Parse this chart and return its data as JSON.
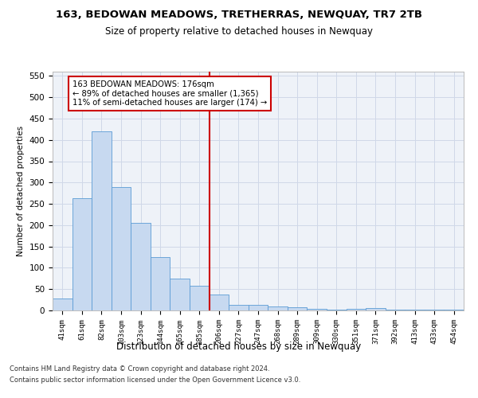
{
  "title": "163, BEDOWAN MEADOWS, TRETHERRAS, NEWQUAY, TR7 2TB",
  "subtitle": "Size of property relative to detached houses in Newquay",
  "xlabel": "Distribution of detached houses by size in Newquay",
  "ylabel": "Number of detached properties",
  "bar_labels": [
    "41sqm",
    "61sqm",
    "82sqm",
    "103sqm",
    "123sqm",
    "144sqm",
    "165sqm",
    "185sqm",
    "206sqm",
    "227sqm",
    "247sqm",
    "268sqm",
    "289sqm",
    "309sqm",
    "330sqm",
    "351sqm",
    "371sqm",
    "392sqm",
    "413sqm",
    "433sqm",
    "454sqm"
  ],
  "bar_values": [
    28,
    263,
    420,
    290,
    205,
    125,
    75,
    57,
    37,
    13,
    13,
    9,
    7,
    4,
    1,
    4,
    5,
    2,
    1,
    1,
    1
  ],
  "bar_color": "#c7d9f0",
  "bar_edge_color": "#5b9bd5",
  "vline_x_index": 7,
  "annotation_text": "163 BEDOWAN MEADOWS: 176sqm\n← 89% of detached houses are smaller (1,365)\n11% of semi-detached houses are larger (174) →",
  "annotation_box_color": "#ffffff",
  "annotation_box_edge": "#cc0000",
  "vline_color": "#cc0000",
  "grid_color": "#d0d8e8",
  "background_color": "#eef2f8",
  "ylim": [
    0,
    560
  ],
  "yticks": [
    0,
    50,
    100,
    150,
    200,
    250,
    300,
    350,
    400,
    450,
    500,
    550
  ],
  "footnote1": "Contains HM Land Registry data © Crown copyright and database right 2024.",
  "footnote2": "Contains public sector information licensed under the Open Government Licence v3.0."
}
